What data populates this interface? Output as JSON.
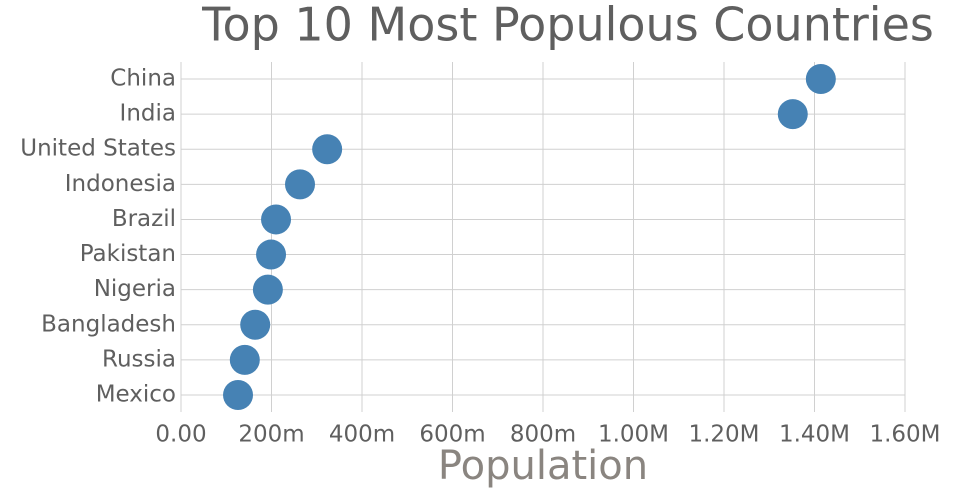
{
  "chart_data": {
    "type": "dot",
    "title": "Top 10 Most Populous Countries",
    "x_label": "Population",
    "categories": [
      "China",
      "India",
      "United States",
      "Indonesia",
      "Brazil",
      "Pakistan",
      "Nigeria",
      "Bangladesh",
      "Russia",
      "Mexico"
    ],
    "values": [
      1414,
      1352,
      323,
      263,
      210,
      199,
      192,
      164,
      141,
      126
    ],
    "color": "#4682b4",
    "xlim": [
      0,
      1600
    ],
    "xticks": [
      {
        "value": 0,
        "label": "0.00"
      },
      {
        "value": 200,
        "label": "200m"
      },
      {
        "value": 400,
        "label": "400m"
      },
      {
        "value": 600,
        "label": "600m"
      },
      {
        "value": 800,
        "label": "800m"
      },
      {
        "value": 1000,
        "label": "1.00M"
      },
      {
        "value": 1200,
        "label": "1.20M"
      },
      {
        "value": 1400,
        "label": "1.40M"
      },
      {
        "value": 1600,
        "label": "1.60M"
      }
    ],
    "grid": true
  }
}
